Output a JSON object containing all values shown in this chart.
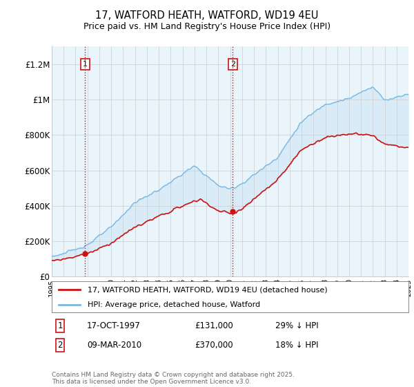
{
  "title_line1": "17, WATFORD HEATH, WATFORD, WD19 4EU",
  "title_line2": "Price paid vs. HM Land Registry's House Price Index (HPI)",
  "ylim": [
    0,
    1300000
  ],
  "yticks": [
    0,
    200000,
    400000,
    600000,
    800000,
    1000000,
    1200000
  ],
  "ytick_labels": [
    "£0",
    "£200K",
    "£400K",
    "£600K",
    "£800K",
    "£1M",
    "£1.2M"
  ],
  "hpi_color": "#7ab8e0",
  "price_color": "#cc1111",
  "marker1_date": "17-OCT-1997",
  "marker1_price": "£131,000",
  "marker1_note": "29% ↓ HPI",
  "marker2_date": "09-MAR-2010",
  "marker2_price": "£370,000",
  "marker2_note": "18% ↓ HPI",
  "legend_label1": "17, WATFORD HEATH, WATFORD, WD19 4EU (detached house)",
  "legend_label2": "HPI: Average price, detached house, Watford",
  "footer": "Contains HM Land Registry data © Crown copyright and database right 2025.\nThis data is licensed under the Open Government Licence v3.0.",
  "background_color": "#ffffff",
  "plot_bg_color": "#eaf4fb",
  "grid_color": "#cccccc"
}
